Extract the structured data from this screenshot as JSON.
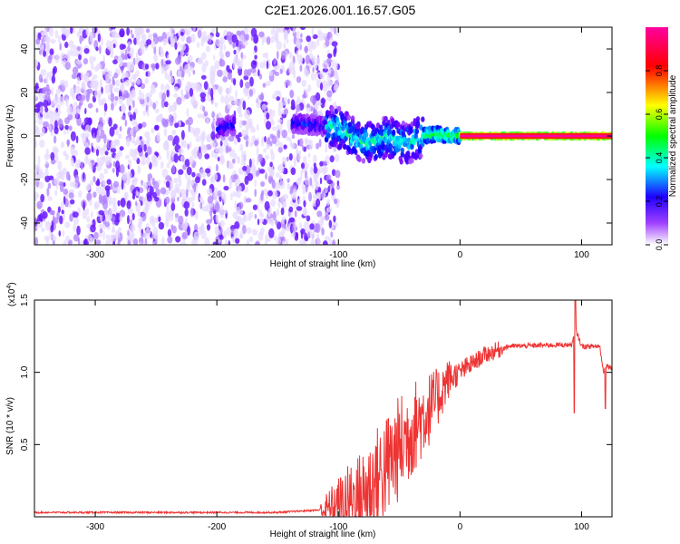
{
  "title": "C2E1.2026.001.16.57.G05",
  "chart_data": [
    {
      "type": "heatmap",
      "xlabel": "Height of straight line (km)",
      "ylabel": "Frequency (Hz)",
      "xlim": [
        -350,
        125
      ],
      "ylim": [
        -50,
        50
      ],
      "x_ticks": [
        -300,
        -200,
        -100,
        0,
        100
      ],
      "y_ticks": [
        -40,
        -20,
        0,
        20,
        40
      ],
      "colorbar": {
        "label": "Normalized spectral amplitude",
        "range": [
          0,
          1
        ],
        "ticks": [
          0.0,
          0.2,
          0.4,
          0.6,
          0.8
        ],
        "colormap": [
          "#ffffff",
          "#8000ff",
          "#0000ff",
          "#00ffff",
          "#00ff00",
          "#ffff00",
          "#ff0000",
          "#ff00ff"
        ]
      },
      "noise_region": {
        "x": [
          -350,
          -100
        ],
        "freq_range": [
          -50,
          50
        ],
        "amplitude": [
          0.05,
          0.3
        ]
      },
      "signal_trace": [
        {
          "x": -200,
          "f": 3
        },
        {
          "x": -190,
          "f": 5
        },
        {
          "x": -135,
          "f": 6
        },
        {
          "x": -120,
          "f": 5
        },
        {
          "x": -100,
          "f": 4
        },
        {
          "x": -90,
          "f": 0
        },
        {
          "x": -80,
          "f": -3
        },
        {
          "x": -70,
          "f": -3
        },
        {
          "x": -60,
          "f": 0
        },
        {
          "x": -50,
          "f": -3
        },
        {
          "x": -40,
          "f": -3
        },
        {
          "x": -35,
          "f": -1
        },
        {
          "x": -30,
          "f": 0
        },
        {
          "x": -20,
          "f": 1
        },
        {
          "x": -10,
          "f": 0
        },
        {
          "x": 0,
          "f": 0
        },
        {
          "x": 125,
          "f": 0
        }
      ]
    },
    {
      "type": "line",
      "xlabel": "Height of straight line (km)",
      "ylabel": "SNR (10 * v/v)",
      "y_scale_label": "(x10",
      "y_scale_exponent": "4",
      "xlim": [
        -350,
        125
      ],
      "ylim": [
        0,
        1.5
      ],
      "x_ticks": [
        -300,
        -200,
        -100,
        0,
        100
      ],
      "y_ticks": [
        0.5,
        1.0,
        1.5
      ],
      "series": [
        {
          "color": "#ee3333",
          "envelope": [
            {
              "x": -350,
              "y": 0.03
            },
            {
              "x": -150,
              "y": 0.03
            },
            {
              "x": -110,
              "y": 0.05
            },
            {
              "x": -80,
              "y": 0.15
            },
            {
              "x": -60,
              "y": 0.35
            },
            {
              "x": -40,
              "y": 0.6
            },
            {
              "x": -20,
              "y": 0.8
            },
            {
              "x": -10,
              "y": 0.95
            },
            {
              "x": 0,
              "y": 1.0
            },
            {
              "x": 20,
              "y": 1.12
            },
            {
              "x": 40,
              "y": 1.18
            },
            {
              "x": 80,
              "y": 1.19
            },
            {
              "x": 92,
              "y": 1.19
            },
            {
              "x": 95,
              "y": 1.3
            },
            {
              "x": 100,
              "y": 1.18
            },
            {
              "x": 115,
              "y": 1.18
            },
            {
              "x": 118,
              "y": 1.0
            },
            {
              "x": 120,
              "y": 1.05
            },
            {
              "x": 125,
              "y": 1.03
            }
          ]
        }
      ]
    }
  ]
}
